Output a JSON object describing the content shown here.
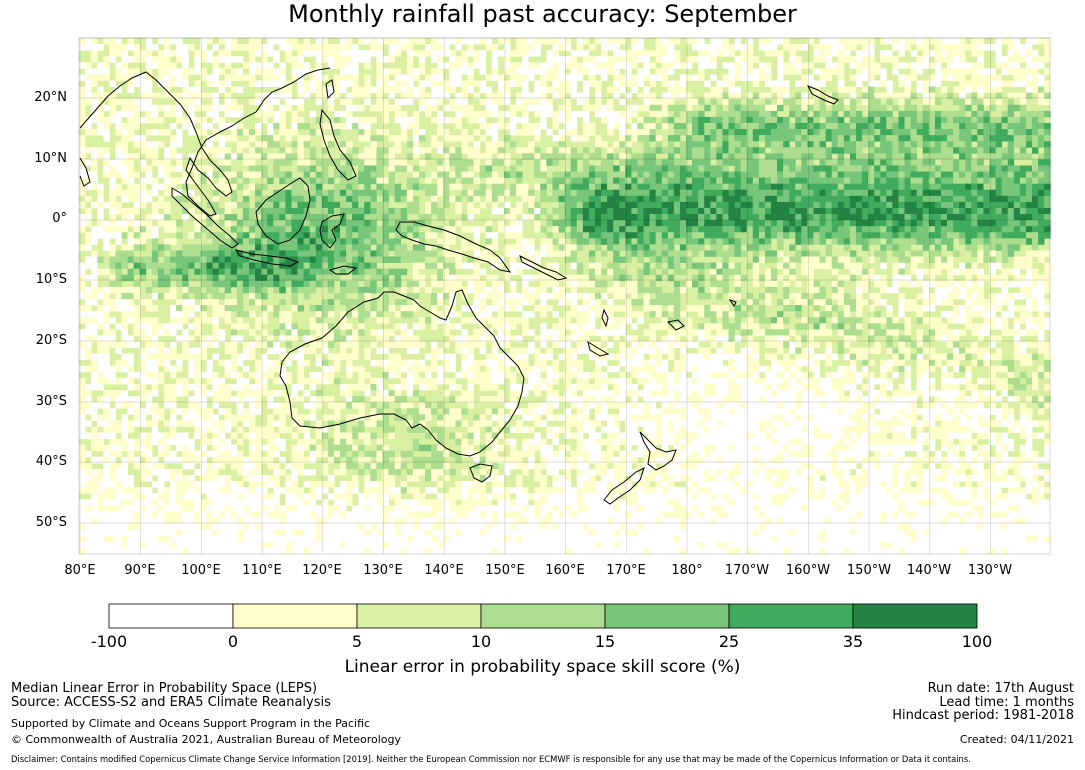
{
  "title": "Monthly rainfall past accuracy: September",
  "map": {
    "lat_labels": [
      "20°N",
      "10°N",
      "0°",
      "10°S",
      "20°S",
      "30°S",
      "40°S",
      "50°S"
    ],
    "lon_labels": [
      "80°E",
      "90°E",
      "100°E",
      "110°E",
      "120°E",
      "130°E",
      "140°E",
      "150°E",
      "160°E",
      "170°E",
      "180°",
      "170°W",
      "160°W",
      "150°W",
      "140°W",
      "130°W"
    ]
  },
  "colorbar": {
    "tick_labels": [
      "-100",
      "0",
      "5",
      "10",
      "15",
      "25",
      "35",
      "100"
    ],
    "colors": [
      "#ffffff",
      "#ffffcc",
      "#d9f0a3",
      "#addd8e",
      "#78c679",
      "#41ab5d",
      "#238443"
    ],
    "title": "Linear error in probability space skill score (%)"
  },
  "footer": {
    "left_line1": "Median Linear Error in Probability Space (LEPS)",
    "left_line2": "Source: ACCESS-S2 and ERA5 Climate Reanalysis",
    "left_line3": "Supported by Climate and Oceans Support Program in the Pacific",
    "left_line4": "© Commonwealth of Australia 2021, Australian Bureau of Meteorology",
    "right_line1": "Run date: 17th August",
    "right_line2": "Lead time: 1 months",
    "right_line3": "Hindcast period: 1981-2018",
    "right_line4": "Created: 04/11/2021",
    "disclaimer": "Disclaimer: Contains modified Copernicus Climate Change Service Information [2019]. Neither the European Commission nor ECMWF is responsible for any use that may be made of the Copernicus Information or Data it contains."
  }
}
